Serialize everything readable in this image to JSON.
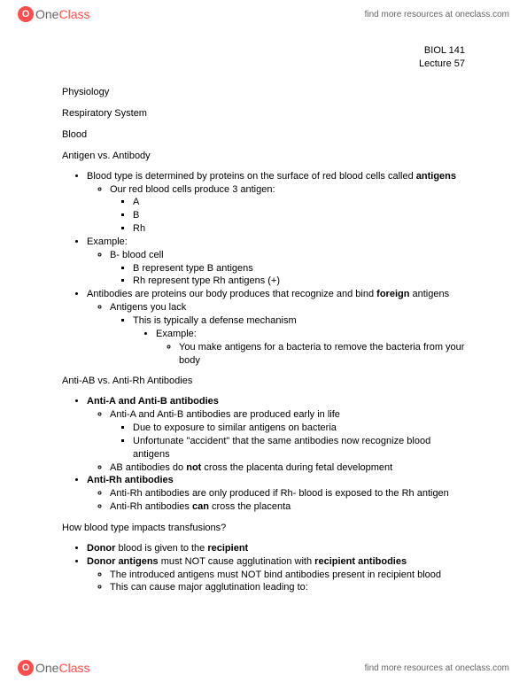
{
  "brand": {
    "icon_letter": "O",
    "name_one": "One",
    "name_class": "Class"
  },
  "header": {
    "link_text": "find more resources at oneclass.com"
  },
  "footer": {
    "link_text": "find more resources at oneclass.com"
  },
  "course": {
    "code": "BIOL 141",
    "lecture": "Lecture 57"
  },
  "titles": {
    "physiology": "Physiology",
    "respiratory": "Respiratory System",
    "blood": "Blood",
    "antigen_vs_antibody": "Antigen vs. Antibody",
    "anti_ab_vs_rh": "Anti-AB vs. Anti-Rh Antibodies",
    "transfusions": "How blood type impacts transfusions?"
  },
  "s1": {
    "l1a": "Blood type is determined by proteins on the surface of red blood cells called ",
    "l1b": "antigens",
    "l1_1": "Our red blood cells produce 3 antigen:",
    "l1_1_a": "A",
    "l1_1_b": "B",
    "l1_1_c": "Rh",
    "l2": "Example:",
    "l2_1": "B- blood cell",
    "l2_1_a": "B represent type B antigens",
    "l2_1_b": "Rh represent type Rh antigens (+)",
    "l3a": "Antibodies are proteins our body produces that recognize and bind ",
    "l3b": "foreign",
    "l3c": " antigens",
    "l3_1": "Antigens you lack",
    "l3_1_a": "This is typically a defense mechanism",
    "l3_1_a_ex": "Example:",
    "l3_1_a_ex_1": "You make antigens for a bacteria to remove the bacteria from your body"
  },
  "s2": {
    "h1": "Anti-A and Anti-B antibodies",
    "h1_1": "Anti-A and Anti-B antibodies are produced early in life",
    "h1_1_a": "Due to exposure to similar antigens on bacteria",
    "h1_1_b": "Unfortunate \"accident\" that the same antibodies now recognize blood antigens",
    "h1_2a": "AB antibodies do ",
    "h1_2b": "not",
    "h1_2c": " cross the placenta during fetal development",
    "h2": "Anti-Rh antibodies",
    "h2_1": "Anti-Rh antibodies are only produced if Rh- blood is exposed to the Rh antigen",
    "h2_2a": "Anti-Rh antibodies ",
    "h2_2b": "can",
    "h2_2c": " cross the placenta"
  },
  "s3": {
    "l1a": "Donor",
    "l1b": " blood is given to the ",
    "l1c": "recipient",
    "l2a": "Donor antigens",
    "l2b": " must NOT cause agglutination with ",
    "l2c": "recipient antibodies",
    "l2_1": "The introduced antigens must NOT bind antibodies present in recipient blood",
    "l2_2": "This can cause major agglutination leading to:"
  }
}
